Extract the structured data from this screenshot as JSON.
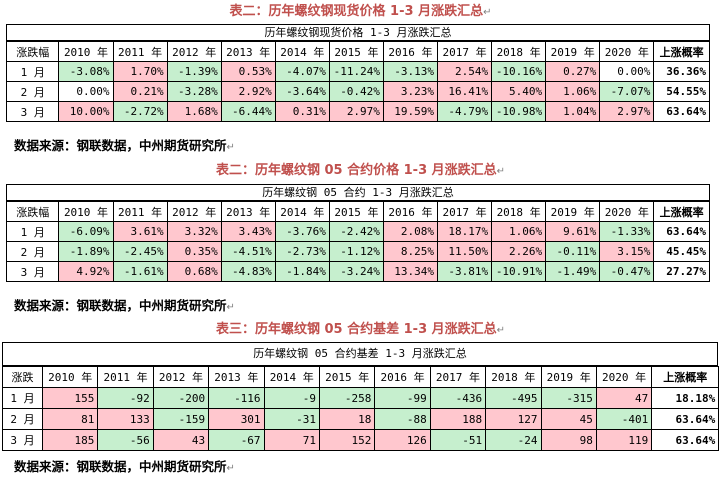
{
  "colors": {
    "up": "#ffc7ce",
    "down": "#c6efce",
    "caption": "#c0504d"
  },
  "return_mark": "↵",
  "tables": [
    {
      "caption": "表二：历年螺纹钢现货价格 1-3 月涨跌汇总",
      "title": "历年螺纹钢现货价格 1-3 月涨跌汇总",
      "corner": "涨跌幅",
      "years": [
        "2010 年",
        "2011 年",
        "2012 年",
        "2013 年",
        "2014 年",
        "2015 年",
        "2016 年",
        "2017 年",
        "2018 年",
        "2019 年",
        "2020 年"
      ],
      "prob_header": "上涨概率",
      "rows": [
        {
          "label": "1 月",
          "values": [
            "-3.08%",
            "1.70%",
            "-1.39%",
            "0.53%",
            "-4.07%",
            "-11.24%",
            "-3.13%",
            "2.54%",
            "-10.16%",
            "0.27%",
            "0.00%"
          ],
          "prob": "36.36%"
        },
        {
          "label": "2 月",
          "values": [
            "0.00%",
            "0.21%",
            "-3.28%",
            "2.92%",
            "-3.64%",
            "-0.42%",
            "3.23%",
            "16.41%",
            "5.40%",
            "1.06%",
            "-7.07%"
          ],
          "prob": "54.55%"
        },
        {
          "label": "3 月",
          "values": [
            "10.00%",
            "-2.72%",
            "1.68%",
            "-6.44%",
            "0.31%",
            "2.97%",
            "19.59%",
            "-4.79%",
            "-10.98%",
            "1.04%",
            "2.97%"
          ],
          "prob": "63.64%"
        }
      ],
      "source": "数据来源：钢联数据，中州期货研究所"
    },
    {
      "caption": "表二：历年螺纹钢 05 合约价格 1-3 月涨跌汇总",
      "title": "历年螺纹钢 05 合约 1-3 月涨跌汇总",
      "corner": "涨跌幅",
      "years": [
        "2010 年",
        "2011 年",
        "2012 年",
        "2013 年",
        "2014 年",
        "2015 年",
        "2016 年",
        "2017 年",
        "2018 年",
        "2019 年",
        "2020 年"
      ],
      "prob_header": "上涨概率",
      "rows": [
        {
          "label": "1 月",
          "values": [
            "-6.09%",
            "3.61%",
            "3.32%",
            "3.43%",
            "-3.76%",
            "-2.42%",
            "2.08%",
            "18.17%",
            "1.06%",
            "9.61%",
            "-1.33%"
          ],
          "prob": "63.64%"
        },
        {
          "label": "2 月",
          "values": [
            "-1.89%",
            "-2.45%",
            "0.35%",
            "-4.51%",
            "-2.73%",
            "-1.12%",
            "8.25%",
            "11.50%",
            "2.26%",
            "-0.11%",
            "3.15%"
          ],
          "prob": "45.45%"
        },
        {
          "label": "3 月",
          "values": [
            "4.92%",
            "-1.61%",
            "0.68%",
            "-4.83%",
            "-1.84%",
            "-3.24%",
            "13.34%",
            "-3.81%",
            "-10.91%",
            "-1.49%",
            "-0.47%"
          ],
          "prob": "27.27%"
        }
      ],
      "source": "数据来源：钢联数据，中州期货研究所"
    },
    {
      "caption": "表三：历年螺纹钢 05 合约基差 1-3 月涨跌汇总",
      "title": "历年螺纹钢 05 合约基差 1-3 月涨跌汇总",
      "corner": "涨跌",
      "years": [
        "2010 年",
        "2011 年",
        "2012 年",
        "2013 年",
        "2014 年",
        "2015 年",
        "2016 年",
        "2017 年",
        "2018 年",
        "2019 年",
        "2020 年"
      ],
      "prob_header": "上涨概率",
      "rows": [
        {
          "label": "1 月",
          "values": [
            "155",
            "-92",
            "-200",
            "-116",
            "-9",
            "-258",
            "-99",
            "-436",
            "-495",
            "-315",
            "47"
          ],
          "prob": "18.18%"
        },
        {
          "label": "2 月",
          "values": [
            "81",
            "133",
            "-159",
            "301",
            "-31",
            "18",
            "-88",
            "188",
            "127",
            "45",
            "-401"
          ],
          "prob": "63.64%"
        },
        {
          "label": "3 月",
          "values": [
            "185",
            "-56",
            "43",
            "-67",
            "71",
            "152",
            "126",
            "-51",
            "-24",
            "98",
            "119"
          ],
          "prob": "63.64%"
        }
      ],
      "source": "数据来源：钢联数据，中州期货研究所"
    }
  ]
}
